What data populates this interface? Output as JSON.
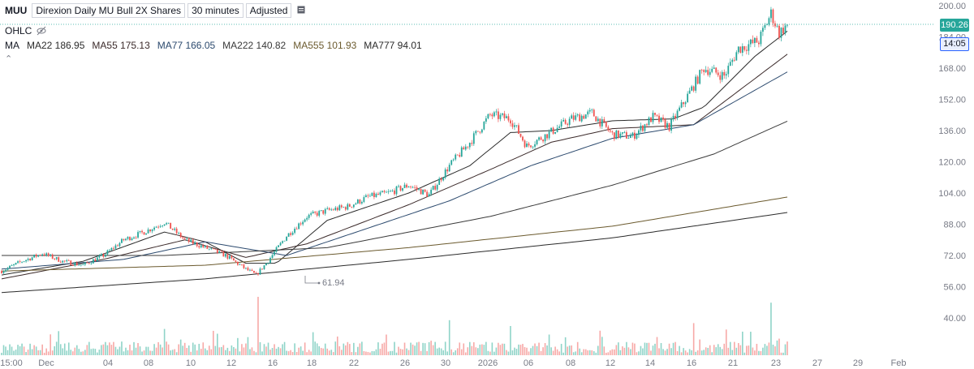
{
  "header": {
    "symbol": "MUU",
    "name": "Direxion Daily MU Bull 2X Shares",
    "interval": "30 minutes",
    "adjustment": "Adjusted"
  },
  "ohlc_label": "OHLC",
  "ma_label": "MA",
  "moving_averages": [
    {
      "label": "MA22 186.95",
      "color": "#2b2b2b"
    },
    {
      "label": "MA55 175.13",
      "color": "#3b2a2a"
    },
    {
      "label": "MA77 166.05",
      "color": "#2c4a6e"
    },
    {
      "label": "MA222 140.82",
      "color": "#3a3a3a"
    },
    {
      "label": "MA555 101.93",
      "color": "#6b5a2e"
    },
    {
      "label": "MA777 94.01",
      "color": "#2b2b2b"
    }
  ],
  "last_price": {
    "value": "190.26",
    "countdown": "14:05",
    "color": "#26a69a"
  },
  "low_marker": "61.94",
  "chart_data": {
    "type": "candlestick",
    "title": "",
    "y_ticks": [
      200,
      184,
      168,
      152,
      136,
      120,
      104,
      88,
      72,
      56,
      40
    ],
    "y_tick_labels": [
      "200.00",
      "184.00",
      "168.00",
      "152.00",
      "136.00",
      "120.00",
      "104.00",
      "88.00",
      "72.00",
      "56.00",
      "40.00"
    ],
    "ylim": [
      30,
      204
    ],
    "x_tick_labels": [
      "15:00",
      "Dec",
      "04",
      "08",
      "10",
      "12",
      "16",
      "18",
      "22",
      "26",
      "30",
      "2026",
      "06",
      "08",
      "12",
      "14",
      "16",
      "21",
      "23",
      "27",
      "29",
      "Feb"
    ],
    "grid": false,
    "close_path": [
      {
        "i": 0,
        "v": 64
      },
      {
        "i": 10,
        "v": 69
      },
      {
        "i": 20,
        "v": 73
      },
      {
        "i": 30,
        "v": 69
      },
      {
        "i": 40,
        "v": 67
      },
      {
        "i": 50,
        "v": 72
      },
      {
        "i": 60,
        "v": 80
      },
      {
        "i": 70,
        "v": 84
      },
      {
        "i": 80,
        "v": 89
      },
      {
        "i": 90,
        "v": 80
      },
      {
        "i": 100,
        "v": 76
      },
      {
        "i": 110,
        "v": 72
      },
      {
        "i": 120,
        "v": 65
      },
      {
        "i": 125,
        "v": 62
      },
      {
        "i": 130,
        "v": 68
      },
      {
        "i": 140,
        "v": 82
      },
      {
        "i": 150,
        "v": 92
      },
      {
        "i": 160,
        "v": 95
      },
      {
        "i": 170,
        "v": 97
      },
      {
        "i": 180,
        "v": 102
      },
      {
        "i": 190,
        "v": 104
      },
      {
        "i": 200,
        "v": 108
      },
      {
        "i": 210,
        "v": 103
      },
      {
        "i": 220,
        "v": 118
      },
      {
        "i": 230,
        "v": 130
      },
      {
        "i": 240,
        "v": 144
      },
      {
        "i": 250,
        "v": 142
      },
      {
        "i": 258,
        "v": 128
      },
      {
        "i": 268,
        "v": 134
      },
      {
        "i": 280,
        "v": 142
      },
      {
        "i": 290,
        "v": 145
      },
      {
        "i": 300,
        "v": 134
      },
      {
        "i": 310,
        "v": 133
      },
      {
        "i": 320,
        "v": 143
      },
      {
        "i": 328,
        "v": 138
      },
      {
        "i": 336,
        "v": 152
      },
      {
        "i": 345,
        "v": 168
      },
      {
        "i": 355,
        "v": 164
      },
      {
        "i": 362,
        "v": 178
      },
      {
        "i": 372,
        "v": 182
      },
      {
        "i": 378,
        "v": 196
      },
      {
        "i": 382,
        "v": 186
      },
      {
        "i": 386,
        "v": 190.26
      }
    ],
    "moving_average_series": [
      {
        "name": "MA22",
        "points": [
          {
            "i": 0,
            "v": 62
          },
          {
            "i": 40,
            "v": 69
          },
          {
            "i": 80,
            "v": 84
          },
          {
            "i": 100,
            "v": 79
          },
          {
            "i": 120,
            "v": 68
          },
          {
            "i": 135,
            "v": 68
          },
          {
            "i": 160,
            "v": 90
          },
          {
            "i": 200,
            "v": 104
          },
          {
            "i": 230,
            "v": 118
          },
          {
            "i": 250,
            "v": 135
          },
          {
            "i": 270,
            "v": 136
          },
          {
            "i": 300,
            "v": 141
          },
          {
            "i": 330,
            "v": 142
          },
          {
            "i": 345,
            "v": 148
          },
          {
            "i": 370,
            "v": 174
          },
          {
            "i": 386,
            "v": 186.95
          }
        ]
      },
      {
        "name": "MA55",
        "points": [
          {
            "i": 0,
            "v": 60
          },
          {
            "i": 50,
            "v": 70
          },
          {
            "i": 90,
            "v": 80
          },
          {
            "i": 120,
            "v": 71
          },
          {
            "i": 150,
            "v": 78
          },
          {
            "i": 200,
            "v": 98
          },
          {
            "i": 240,
            "v": 116
          },
          {
            "i": 270,
            "v": 130
          },
          {
            "i": 300,
            "v": 137
          },
          {
            "i": 340,
            "v": 139
          },
          {
            "i": 386,
            "v": 175.13
          }
        ]
      },
      {
        "name": "MA77",
        "points": [
          {
            "i": 0,
            "v": 65
          },
          {
            "i": 60,
            "v": 70
          },
          {
            "i": 100,
            "v": 79
          },
          {
            "i": 140,
            "v": 72
          },
          {
            "i": 180,
            "v": 86
          },
          {
            "i": 220,
            "v": 100
          },
          {
            "i": 260,
            "v": 118
          },
          {
            "i": 300,
            "v": 132
          },
          {
            "i": 340,
            "v": 139
          },
          {
            "i": 386,
            "v": 166.05
          }
        ]
      },
      {
        "name": "MA222",
        "points": [
          {
            "i": 0,
            "v": 72
          },
          {
            "i": 80,
            "v": 72
          },
          {
            "i": 160,
            "v": 76
          },
          {
            "i": 240,
            "v": 92
          },
          {
            "i": 300,
            "v": 108
          },
          {
            "i": 350,
            "v": 124
          },
          {
            "i": 386,
            "v": 140.82
          }
        ]
      },
      {
        "name": "MA555",
        "points": [
          {
            "i": 0,
            "v": 64
          },
          {
            "i": 100,
            "v": 67
          },
          {
            "i": 200,
            "v": 76
          },
          {
            "i": 300,
            "v": 87
          },
          {
            "i": 386,
            "v": 101.93
          }
        ]
      },
      {
        "name": "MA777",
        "points": [
          {
            "i": 0,
            "v": 53
          },
          {
            "i": 100,
            "v": 60
          },
          {
            "i": 200,
            "v": 70
          },
          {
            "i": 300,
            "v": 81
          },
          {
            "i": 386,
            "v": 94.01
          }
        ]
      }
    ],
    "volume_peaks": [
      {
        "i": 126,
        "rel": 1.0
      },
      {
        "i": 340,
        "rel": 0.55
      },
      {
        "i": 378,
        "rel": 0.9
      },
      {
        "i": 220,
        "rel": 0.6
      },
      {
        "i": 250,
        "rel": 0.5
      },
      {
        "i": 80,
        "rel": 0.45
      }
    ],
    "up_color": "#26a69a",
    "down_color": "#ef5350",
    "vol_up_color": "#8fd4c8",
    "vol_down_color": "#f7a9a7"
  }
}
